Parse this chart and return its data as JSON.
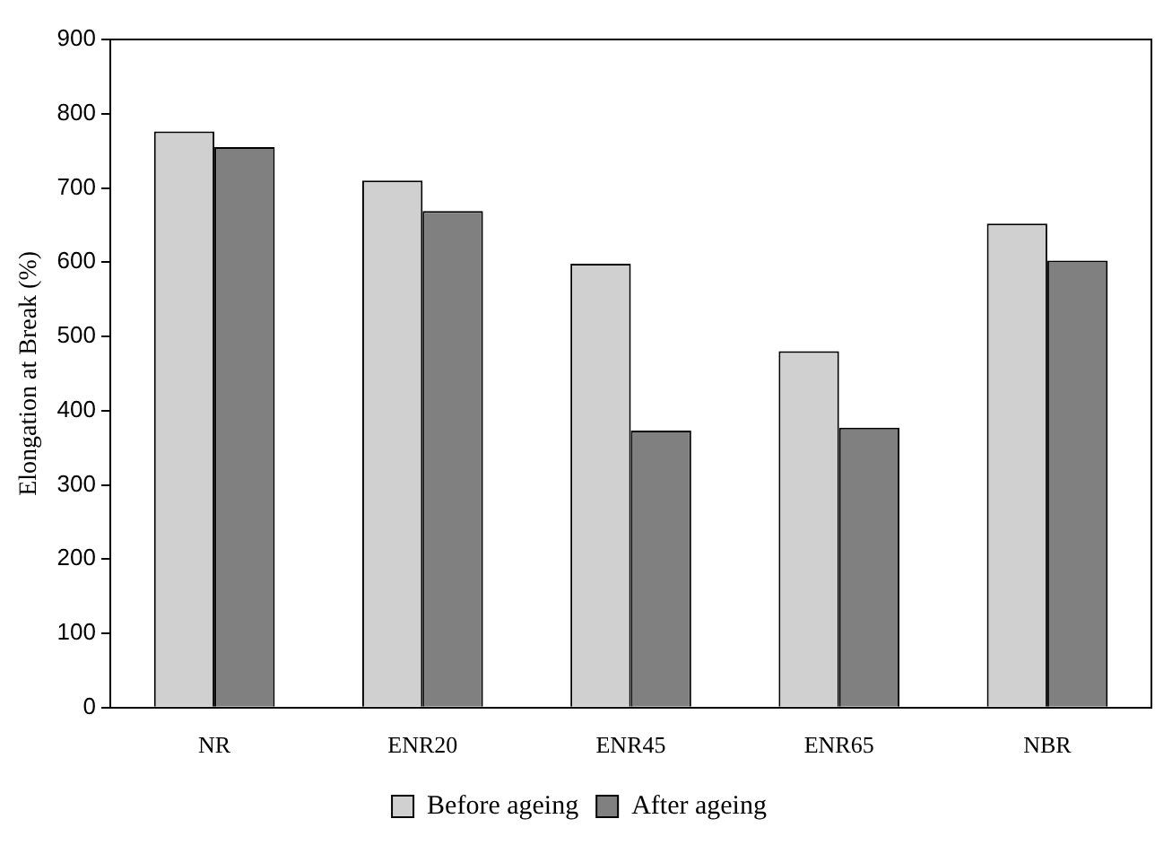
{
  "chart_data": {
    "type": "bar",
    "ylabel": "Elongation at Break (%)",
    "categories": [
      "NR",
      "ENR20",
      "ENR45",
      "ENR65",
      "NBR"
    ],
    "series": [
      {
        "name": "Before ageing",
        "color": "#d0d0d0",
        "values": [
          776,
          710,
          598,
          480,
          652
        ]
      },
      {
        "name": "After ageing",
        "color": "#808080",
        "values": [
          755,
          669,
          373,
          377,
          602
        ]
      }
    ],
    "ylim": [
      0,
      900
    ],
    "yticks": [
      0,
      100,
      200,
      300,
      400,
      500,
      600,
      700,
      800,
      900
    ],
    "grid": false,
    "legend": "bottom"
  }
}
